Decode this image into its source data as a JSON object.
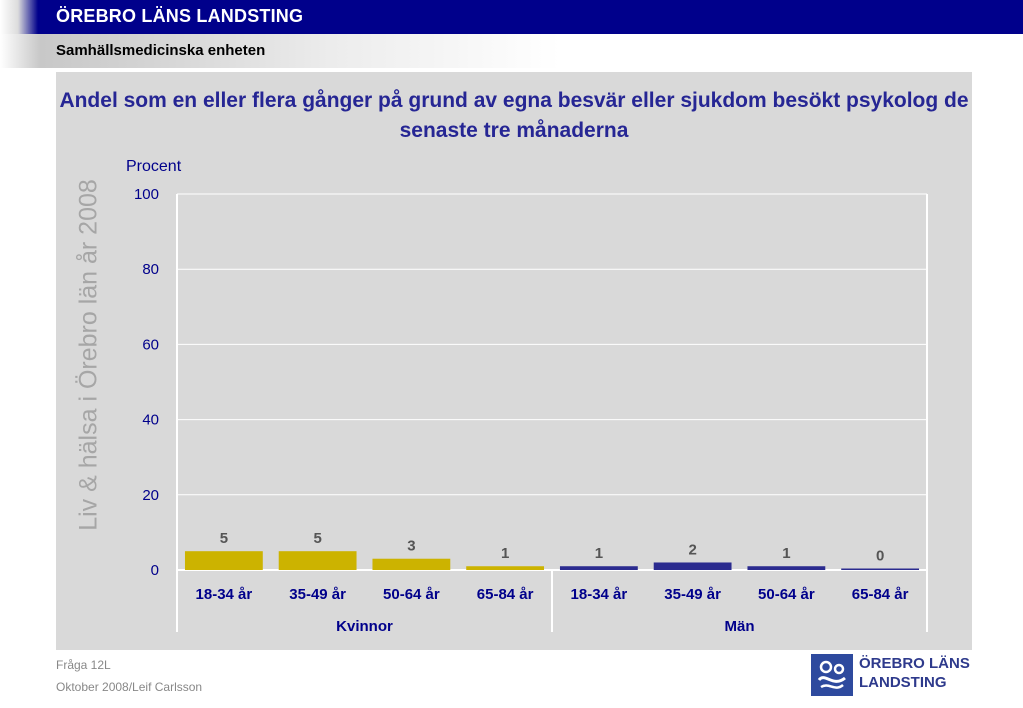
{
  "header": {
    "title": "ÖREBRO LÄNS LANDSTING",
    "subtitle": "Samhällsmedicinska enheten"
  },
  "watermark": "Liv & hälsa i Örebro län år 2008",
  "footer": {
    "question": "Fråga 12L",
    "credit": "Oktober 2008/Leif Carlsson"
  },
  "logo": {
    "line1": "ÖREBRO LÄNS",
    "line2": "LANDSTING",
    "icon": "landsting-logo-icon"
  },
  "colors": {
    "accent_navy": "#00008b",
    "kvinnor": "#ccb300",
    "man": "#2b2b8f"
  },
  "chart_data": {
    "type": "bar",
    "title": "Andel som en eller flera gånger på grund av egna besvär eller sjukdom besökt psykolog de senaste tre månaderna",
    "ylabel": "Procent",
    "ylim": [
      0,
      100
    ],
    "yticks": [
      "0",
      "20",
      "40",
      "60",
      "80",
      "100"
    ],
    "grid": true,
    "groups": [
      {
        "name": "Kvinnor",
        "color": "#ccb300",
        "categories": [
          "18-34 år",
          "35-49 år",
          "50-64 år",
          "65-84 år"
        ],
        "values": [
          5,
          5,
          3,
          1
        ],
        "labels": [
          "5",
          "5",
          "3",
          "1"
        ]
      },
      {
        "name": "Män",
        "color": "#2b2b8f",
        "categories": [
          "18-34 år",
          "35-49 år",
          "50-64 år",
          "65-84 år"
        ],
        "values": [
          1,
          2,
          1,
          0
        ],
        "labels": [
          "1",
          "2",
          "1",
          "0"
        ]
      }
    ]
  }
}
